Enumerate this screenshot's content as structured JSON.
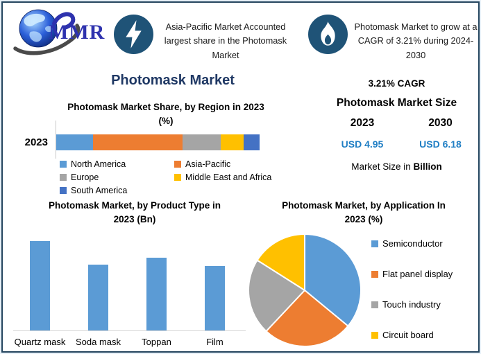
{
  "theme": {
    "navy": "#1F3864",
    "icon_bg": "#1F5377",
    "usd_blue": "#1F7EC4",
    "border": "#24455E"
  },
  "logo": {
    "text": "MMR"
  },
  "header": {
    "callout1": {
      "icon": "lightning-icon",
      "text": "Asia-Pacific Market Accounted largest share in the Photomask Market"
    },
    "callout2": {
      "icon": "flame-icon",
      "text": "Photomask Market to grow at a CAGR of 3.21% during 2024-2030"
    }
  },
  "title": "Photomask Market",
  "stats": {
    "cagr": "3.21% CAGR",
    "size_title": "Photomask Market Size",
    "year_start": "2023",
    "year_end": "2030",
    "value_start": "USD 4.95",
    "value_end": "USD 6.18",
    "note_prefix": "Market Size in ",
    "note_bold": "Billion"
  },
  "chart_data": [
    {
      "id": "region_share",
      "type": "bar",
      "subtype": "horizontal-stacked",
      "title": "Photomask Market Share, by Region in 2023 (%)",
      "title_lines": [
        "Photomask Market Share, by Region in 2023",
        "(%)"
      ],
      "categories": [
        "2023"
      ],
      "series": [
        {
          "name": "North America",
          "color": "#5B9BD5",
          "values": [
            18
          ]
        },
        {
          "name": "Asia-Pacific",
          "color": "#ED7D31",
          "values": [
            44
          ]
        },
        {
          "name": "Europe",
          "color": "#A5A5A5",
          "values": [
            19
          ]
        },
        {
          "name": "Middle East and Africa",
          "color": "#FFC000",
          "values": [
            11
          ]
        },
        {
          "name": "South America",
          "color": "#4472C4",
          "values": [
            8
          ]
        }
      ],
      "xlim": [
        0,
        100
      ],
      "legend_position": "bottom",
      "grid": false
    },
    {
      "id": "product_type",
      "type": "bar",
      "title": "Photomask Market, by Product Type in 2023 (Bn)",
      "title_lines": [
        "Photomask Market, by Product Type in",
        "2023 (Bn)"
      ],
      "categories": [
        "Quartz mask",
        "Soda mask",
        "Toppan",
        "Film"
      ],
      "values": [
        1.5,
        1.11,
        1.22,
        1.08
      ],
      "color": "#5B9BD5",
      "ylabel": "",
      "xlabel": "",
      "value_axis_hidden": true,
      "grid": false
    },
    {
      "id": "application",
      "type": "pie",
      "title": "Photomask Market, by Application In 2023 (%)",
      "title_lines": [
        "Photomask Market, by Application In",
        "2023 (%)"
      ],
      "labels": [
        "Semiconductor",
        "Flat panel display",
        "Touch industry",
        "Circuit board"
      ],
      "values": [
        36,
        26,
        22,
        16
      ],
      "colors": [
        "#5B9BD5",
        "#ED7D31",
        "#A5A5A5",
        "#FFC000"
      ],
      "start_angle_deg": 0,
      "direction": "clockwise",
      "legend_position": "right"
    }
  ]
}
